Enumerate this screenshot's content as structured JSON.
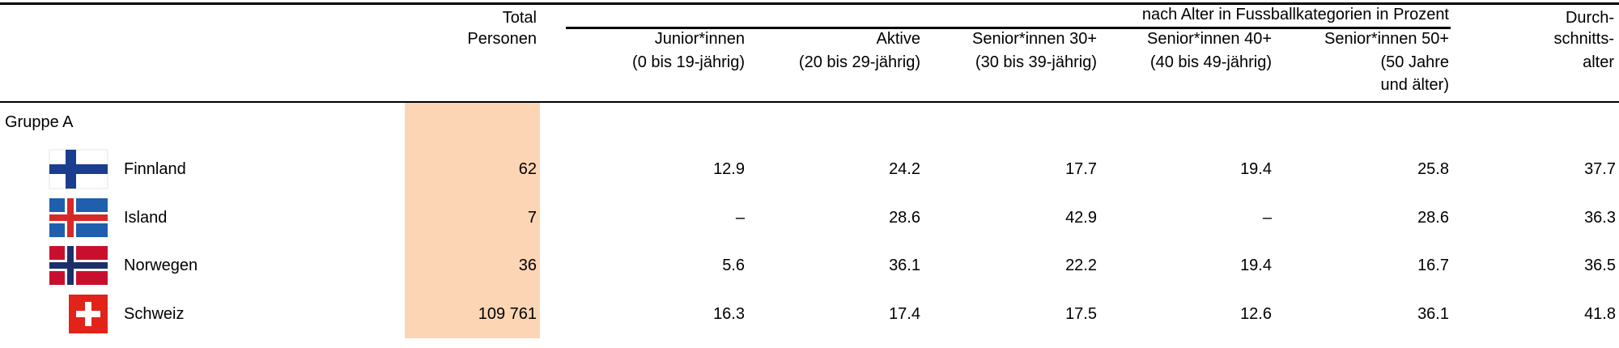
{
  "table": {
    "total_header": [
      "Total",
      "Personen"
    ],
    "group_header": "nach Alter in Fussballkategorien in Prozent",
    "age_headers": [
      [
        "Junior*innen",
        "(0 bis 19-jährig)"
      ],
      [
        "Aktive",
        "(20 bis 29-jährig)"
      ],
      [
        "Senior*innen 30+",
        "(30 bis 39-jährig)"
      ],
      [
        "Senior*innen 40+",
        "(40 bis 49-jährig)"
      ],
      [
        "Senior*innen 50+",
        "(50 Jahre",
        "und älter)"
      ]
    ],
    "average_header": [
      "Durch-",
      "schnitts-",
      "alter"
    ],
    "group_label": "Gruppe A",
    "rows": [
      {
        "name": "Finnland",
        "total": "62",
        "values": [
          "12.9",
          "24.2",
          "17.7",
          "19.4",
          "25.8"
        ],
        "average": "37.7"
      },
      {
        "name": "Island",
        "total": "7",
        "values": [
          "–",
          "28.6",
          "42.9",
          "–",
          "28.6"
        ],
        "average": "36.3"
      },
      {
        "name": "Norwegen",
        "total": "36",
        "values": [
          "5.6",
          "36.1",
          "22.2",
          "19.4",
          "16.7"
        ],
        "average": "36.5"
      },
      {
        "name": "Schweiz",
        "total": "109 761",
        "values": [
          "16.3",
          "17.4",
          "17.5",
          "12.6",
          "36.1"
        ],
        "average": "41.8"
      }
    ]
  }
}
